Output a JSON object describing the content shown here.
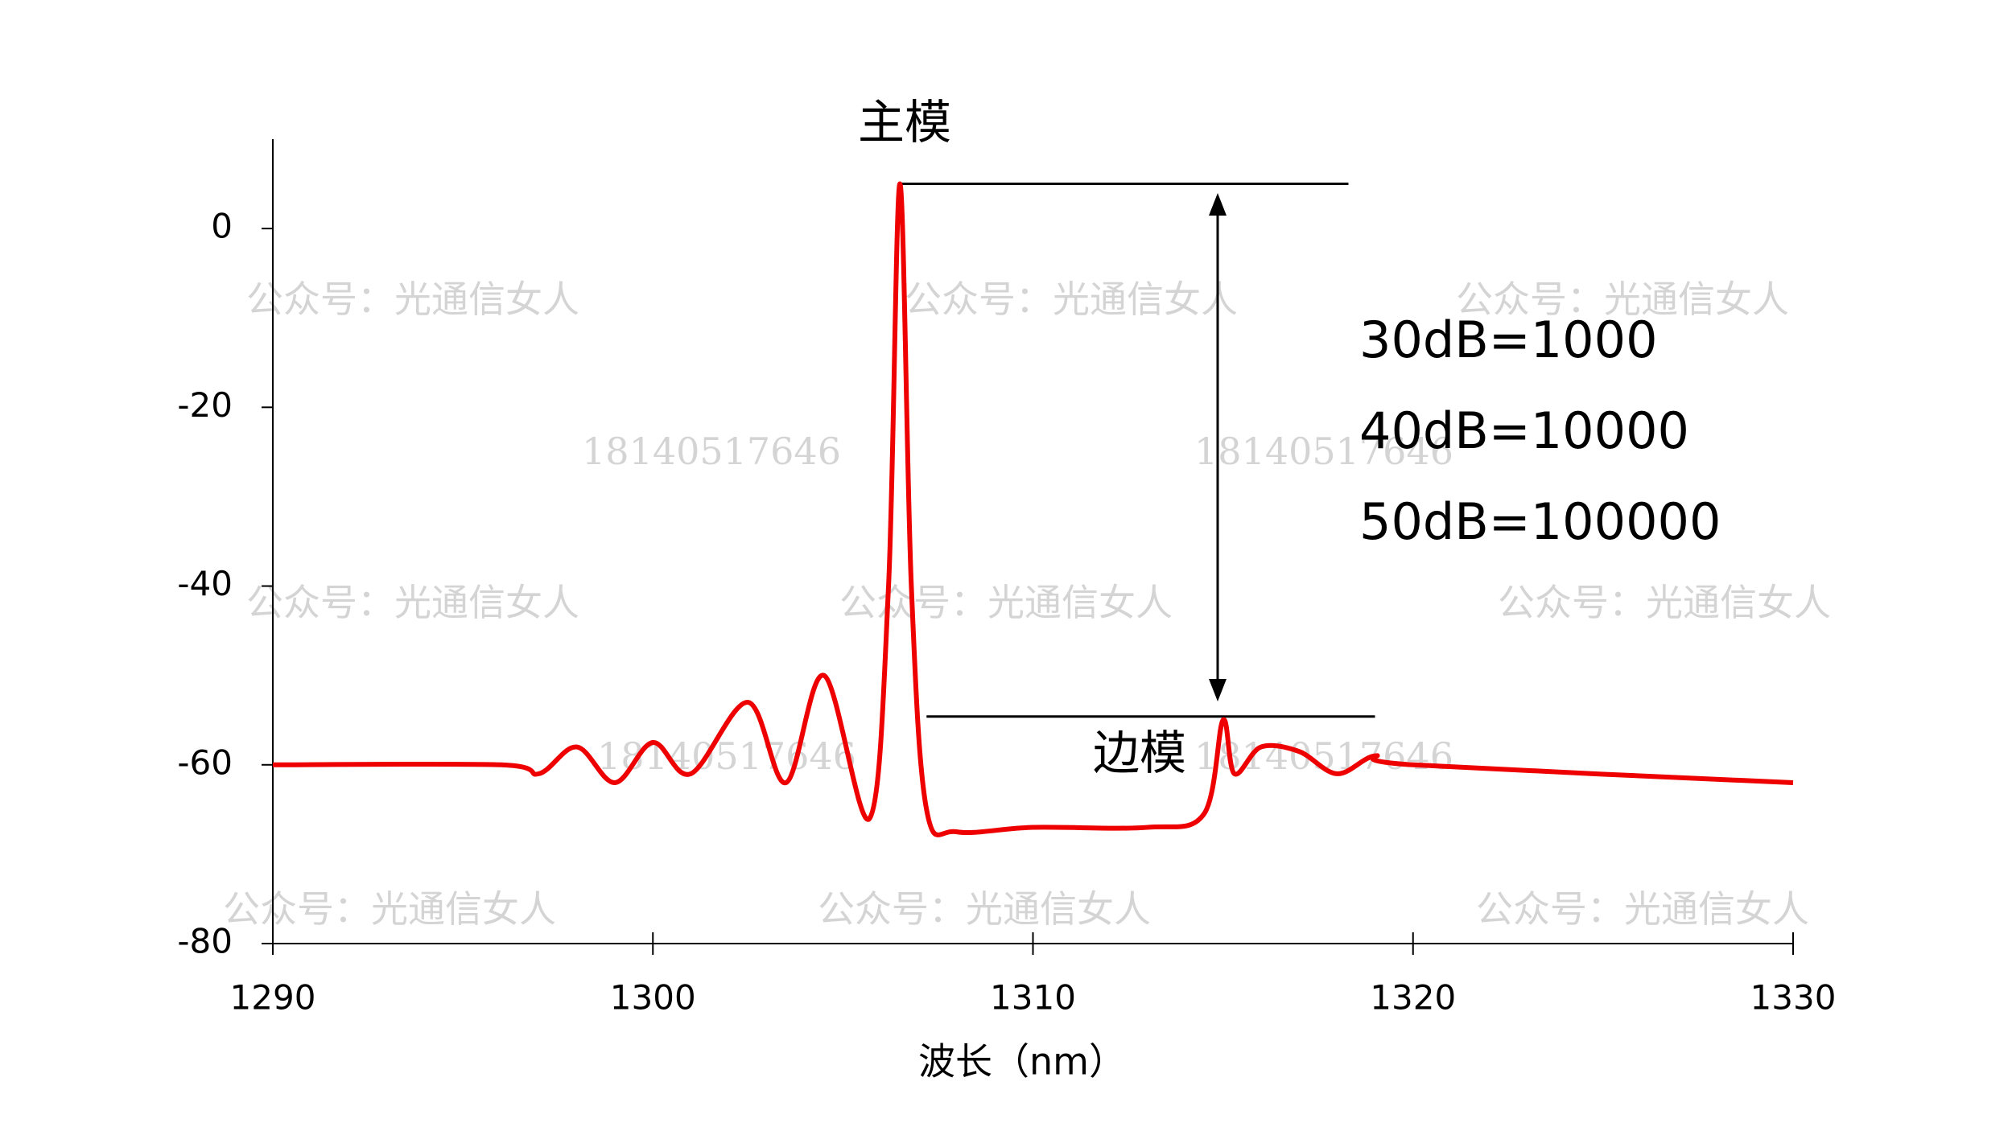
{
  "chart_data": {
    "type": "line",
    "xlabel": "波长（nm）",
    "x": [
      1290,
      1296,
      1297,
      1298,
      1299,
      1300,
      1301,
      1302.5,
      1303.5,
      1304.5,
      1305.7,
      1306.2,
      1306.5,
      1306.8,
      1307.2,
      1308,
      1310,
      1313,
      1314.5,
      1315,
      1315.3,
      1316,
      1317,
      1318,
      1319,
      1320,
      1330
    ],
    "series": [
      {
        "color": "#ee0000",
        "values": [
          -60,
          -60,
          -61,
          -58,
          -62,
          -57.5,
          -61,
          -53,
          -62,
          -50,
          -66,
          -40,
          5,
          -40,
          -65,
          -67.5,
          -67,
          -67,
          -65.5,
          -55,
          -61,
          -58,
          -58.5,
          -61,
          -59,
          -60,
          -62
        ]
      }
    ],
    "xlim": [
      1290,
      1330
    ],
    "xticks": [
      1290,
      1300,
      1310,
      1320,
      1330
    ],
    "ylim": [
      -80,
      10
    ],
    "yticks": [
      0,
      -20,
      -40,
      -60,
      -80
    ],
    "reference_lines": [
      {
        "label": "主模",
        "y": 5,
        "x": [
          1306.5,
          1318.3
        ]
      },
      {
        "label": "边模",
        "y": -54.6,
        "x": [
          1307.2,
          1319
        ]
      }
    ],
    "notes": [
      "30dB=1000",
      "40dB=10000",
      "50dB=100000"
    ],
    "watermarks": [
      "公众号：光通信女人",
      "公众号：光通信女人",
      "公众号：光通信女人",
      "公众号：光通信女人",
      "公众号：光通信女人",
      "公众号：光通信女人",
      "公众号：光通信女人",
      "公众号：光通信女人",
      "公众号：光通信女人",
      "18140517646",
      "18140517646",
      "18140517646",
      "18140517646"
    ]
  }
}
